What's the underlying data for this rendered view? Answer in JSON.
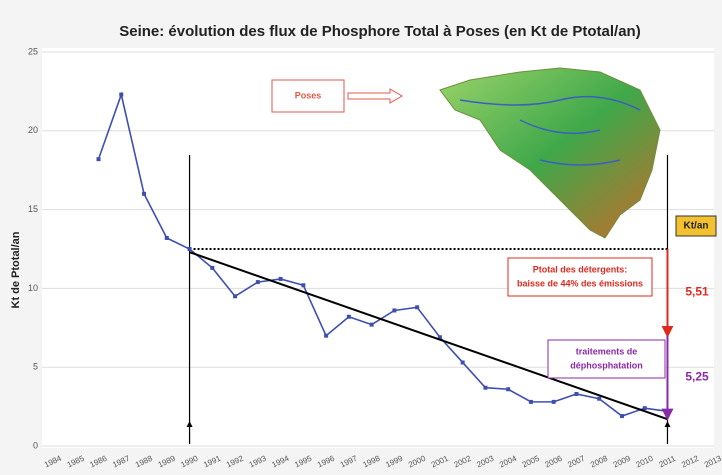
{
  "chart_data": {
    "type": "line",
    "title": "Seine: évolution des flux de Phosphore Total à Poses (en Kt de Ptotal/an)",
    "y_label": "Kt de Ptotal/an",
    "x": [
      1986,
      1987,
      1988,
      1989,
      1990,
      1991,
      1992,
      1993,
      1994,
      1995,
      1996,
      1997,
      1998,
      1999,
      2000,
      2001,
      2002,
      2003,
      2004,
      2005,
      2006,
      2007,
      2008,
      2009,
      2010,
      2011
    ],
    "series": [
      {
        "color": "#3f4fb0",
        "values": [
          18.2,
          22.3,
          16.0,
          13.2,
          12.5,
          11.3,
          9.5,
          10.4,
          10.6,
          10.2,
          7.0,
          8.2,
          7.7,
          8.6,
          8.8,
          6.9,
          5.3,
          3.7,
          3.6,
          2.8,
          2.8,
          3.3,
          3.0,
          1.9,
          2.4,
          2.2
        ]
      }
    ],
    "trend": {
      "x": [
        1990,
        2011
      ],
      "values": [
        12.3,
        1.7
      ],
      "color": "#000000"
    },
    "reference_level": 12.5,
    "xlim": [
      1984,
      2013
    ],
    "xticks": [
      1984,
      1985,
      1986,
      1987,
      1988,
      1989,
      1990,
      1991,
      1992,
      1993,
      1994,
      1995,
      1996,
      1997,
      1998,
      1999,
      2000,
      2001,
      2002,
      2003,
      2004,
      2005,
      2006,
      2007,
      2008,
      2009,
      2010,
      2011,
      2012,
      2013
    ],
    "ylim": [
      0,
      25
    ],
    "yticks": [
      0,
      5,
      10,
      15,
      20,
      25
    ],
    "grid": true,
    "unit_box": "Kt/an",
    "map_label": "Poses",
    "reductions": [
      {
        "value": 5.51,
        "label": "5,51",
        "text": [
          "Ptotal des détergents:",
          "baisse de 44% des émissions"
        ],
        "color": "#e02a1e"
      },
      {
        "value": 5.25,
        "label": "5,25",
        "text": [
          "traitements de",
          "déphosphatation"
        ],
        "color": "#8a2aa8"
      }
    ]
  }
}
